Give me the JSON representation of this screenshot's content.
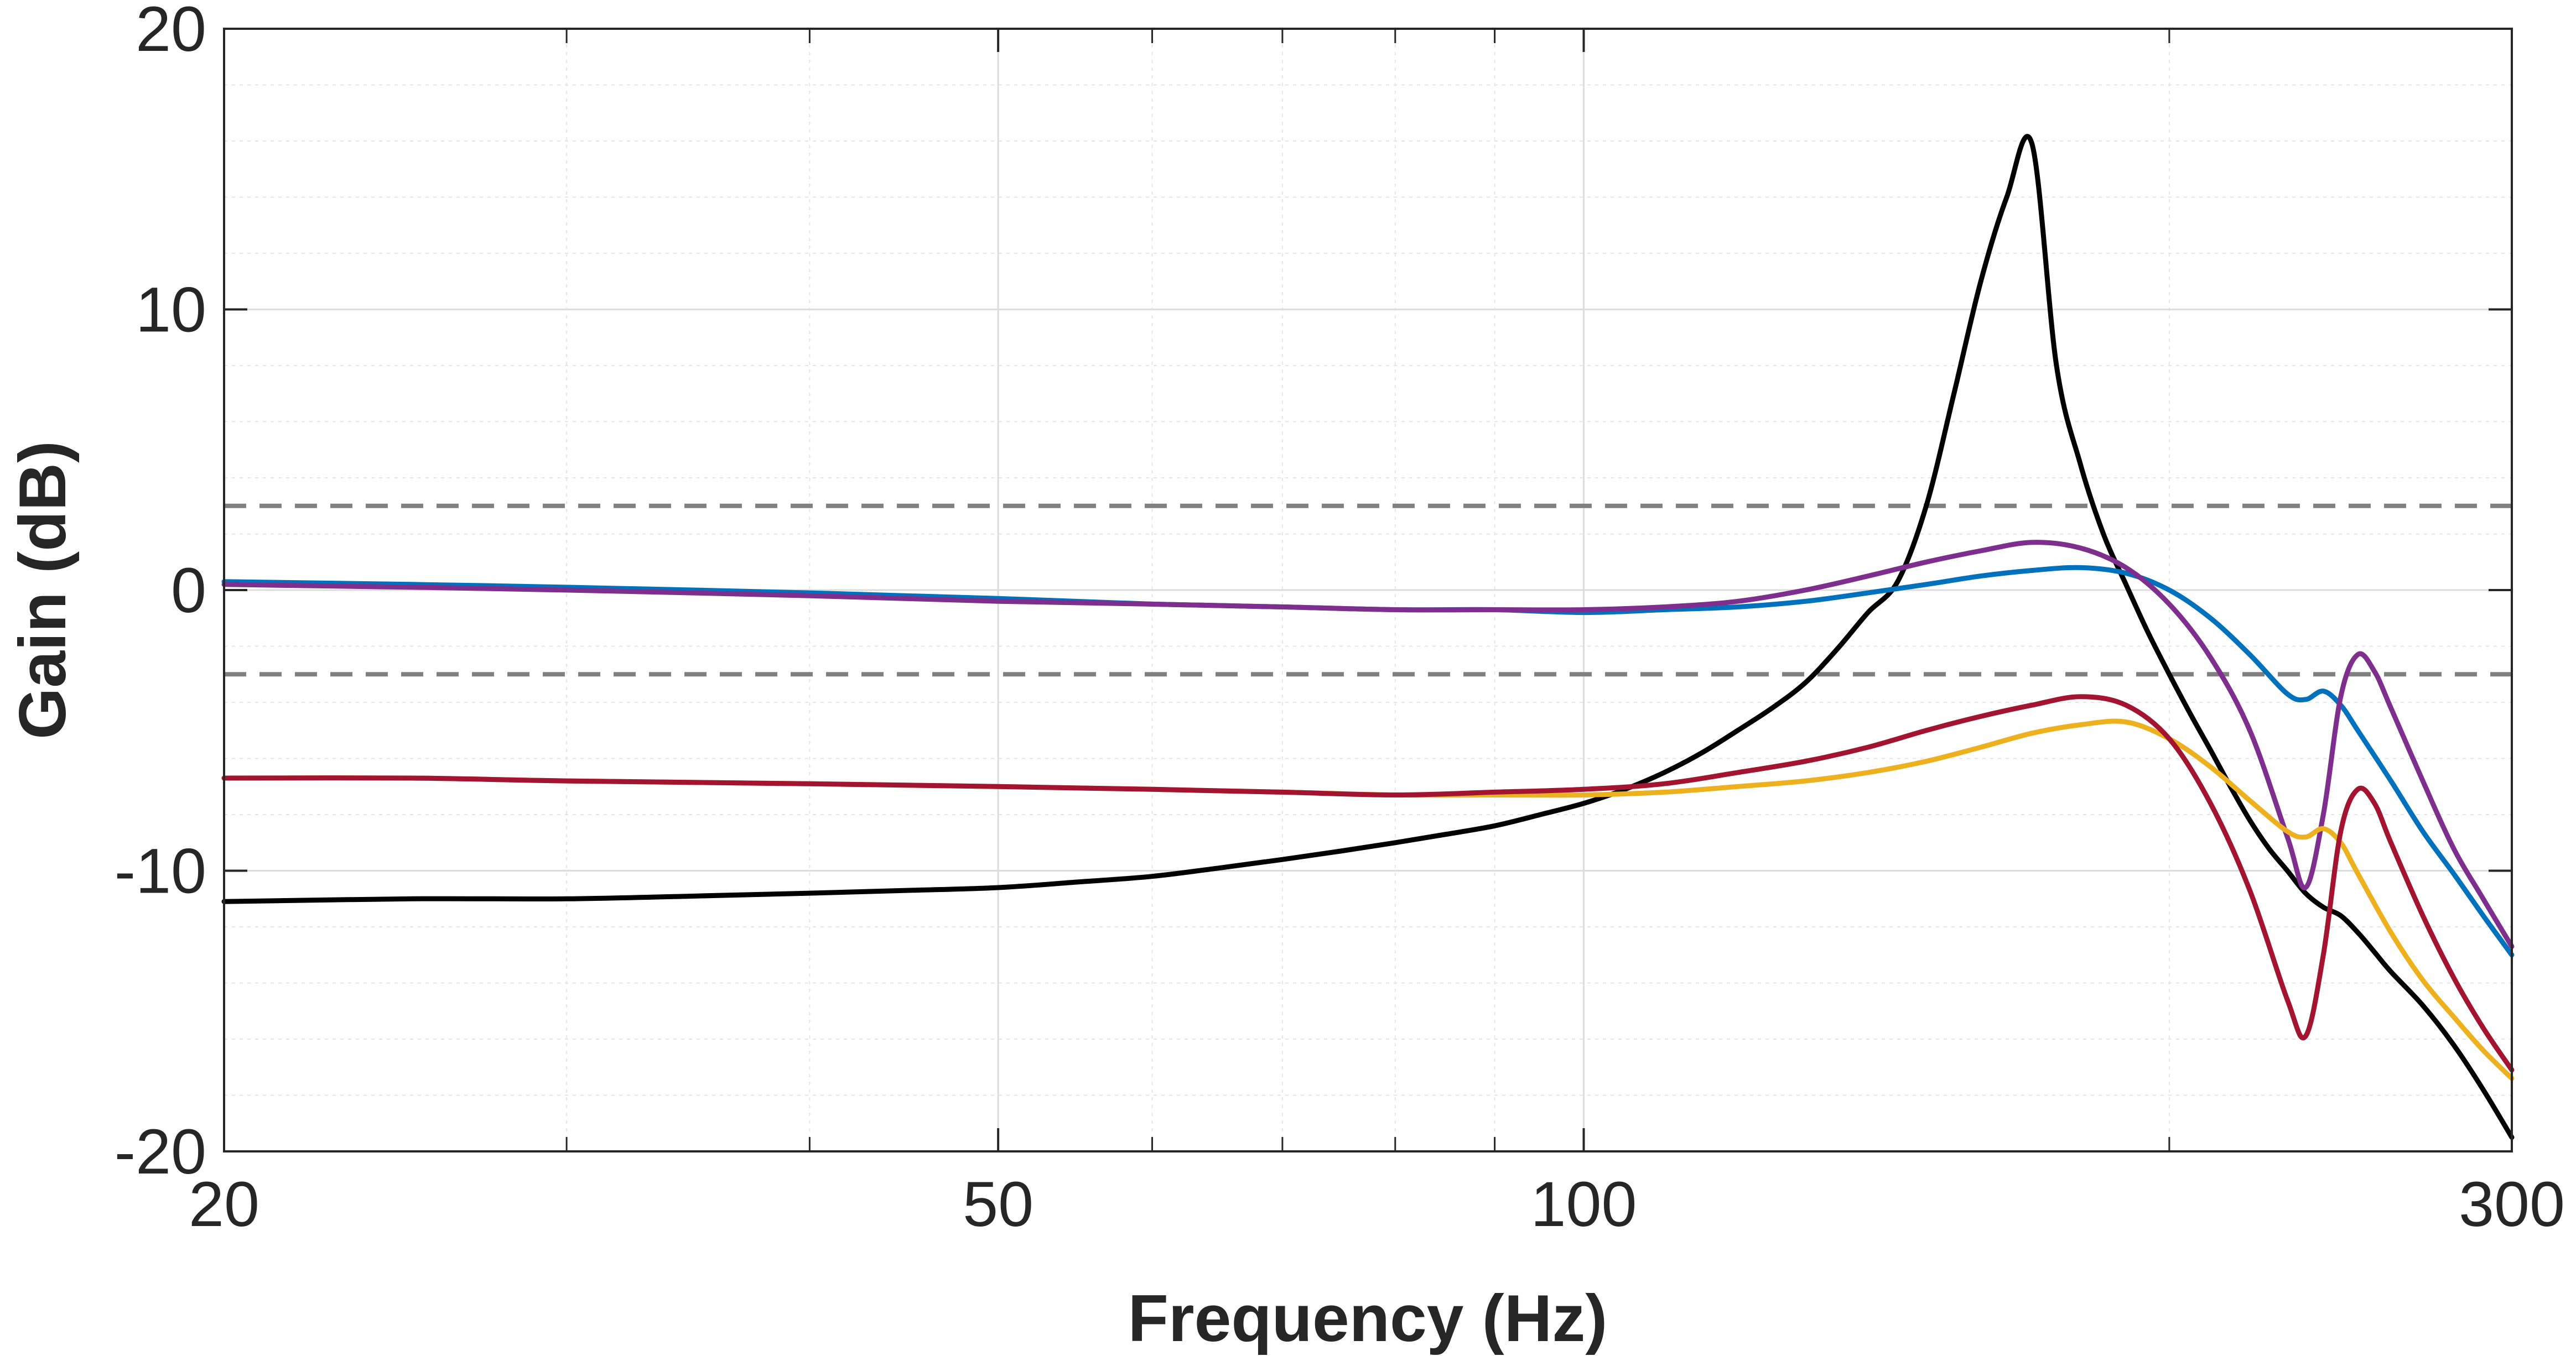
{
  "chart_data": {
    "type": "line",
    "title": "",
    "xlabel": "Frequency (Hz)",
    "ylabel": "Gain (dB)",
    "xscale": "log",
    "xlim": [
      20,
      300
    ],
    "ylim": [
      -20,
      20
    ],
    "xticks": [
      20,
      50,
      100,
      300
    ],
    "xtick_labels": [
      "20",
      "50",
      "100",
      "300"
    ],
    "yticks": [
      -20,
      -10,
      0,
      10,
      20
    ],
    "ytick_labels": [
      "-20",
      "-10",
      "0",
      "10",
      "20"
    ],
    "grid": true,
    "legend": "none",
    "reference_lines": [
      {
        "y": 3,
        "style": "dashed",
        "color": "#808080"
      },
      {
        "y": -3,
        "style": "dashed",
        "color": "#808080"
      }
    ],
    "series": [
      {
        "color": "#000000",
        "x": [
          20,
          25,
          30,
          35,
          40,
          45,
          50,
          55,
          60,
          65,
          70,
          75,
          80,
          85,
          90,
          95,
          100,
          105,
          110,
          115,
          120,
          125,
          130,
          135,
          140,
          145,
          150,
          155,
          160,
          165,
          170,
          175,
          180,
          185,
          190,
          195,
          200,
          205,
          210,
          215,
          220,
          225,
          230,
          235,
          240,
          245,
          250,
          255,
          260,
          270,
          280,
          290,
          300
        ],
        "y": [
          -11.1,
          -11.0,
          -11.0,
          -10.9,
          -10.8,
          -10.7,
          -10.6,
          -10.4,
          -10.2,
          -9.9,
          -9.6,
          -9.3,
          -9.0,
          -8.7,
          -8.4,
          -8.0,
          -7.6,
          -7.1,
          -6.5,
          -5.8,
          -5.0,
          -4.2,
          -3.3,
          -2.1,
          -0.8,
          0.3,
          3.0,
          7.0,
          11.0,
          14.0,
          15.9,
          8.0,
          4.5,
          2.0,
          0.2,
          -1.5,
          -3.0,
          -4.4,
          -5.7,
          -7.0,
          -8.2,
          -9.2,
          -10.0,
          -10.8,
          -11.3,
          -11.6,
          -12.2,
          -12.9,
          -13.6,
          -14.8,
          -16.2,
          -17.8,
          -19.5
        ]
      },
      {
        "color": "#0072BD",
        "x": [
          20,
          25,
          30,
          40,
          50,
          60,
          70,
          80,
          90,
          100,
          110,
          120,
          130,
          140,
          150,
          160,
          170,
          180,
          190,
          200,
          210,
          220,
          230,
          235,
          240,
          245,
          250,
          260,
          270,
          280,
          290,
          300
        ],
        "y": [
          0.3,
          0.2,
          0.1,
          -0.1,
          -0.3,
          -0.5,
          -0.6,
          -0.7,
          -0.7,
          -0.8,
          -0.7,
          -0.6,
          -0.4,
          -0.1,
          0.2,
          0.5,
          0.7,
          0.8,
          0.6,
          0.0,
          -1.0,
          -2.3,
          -3.7,
          -3.9,
          -3.6,
          -4.1,
          -5.0,
          -6.8,
          -8.6,
          -10.1,
          -11.6,
          -13.0
        ]
      },
      {
        "color": "#7E2F8E",
        "x": [
          20,
          25,
          30,
          40,
          50,
          60,
          70,
          80,
          90,
          100,
          110,
          120,
          130,
          140,
          150,
          160,
          170,
          180,
          190,
          200,
          210,
          220,
          230,
          235,
          240,
          245,
          250,
          255,
          260,
          270,
          280,
          290,
          300
        ],
        "y": [
          0.2,
          0.1,
          0.0,
          -0.2,
          -0.4,
          -0.5,
          -0.6,
          -0.7,
          -0.7,
          -0.7,
          -0.6,
          -0.4,
          0.0,
          0.5,
          1.0,
          1.4,
          1.7,
          1.5,
          0.8,
          -0.5,
          -2.4,
          -5.0,
          -8.8,
          -10.6,
          -8.0,
          -3.8,
          -2.3,
          -2.9,
          -4.2,
          -6.8,
          -9.2,
          -11.0,
          -12.7
        ]
      },
      {
        "color": "#EDB120",
        "x": [
          20,
          25,
          30,
          40,
          50,
          60,
          70,
          80,
          90,
          100,
          110,
          120,
          130,
          140,
          150,
          160,
          170,
          180,
          190,
          200,
          210,
          220,
          230,
          235,
          240,
          245,
          250,
          260,
          270,
          280,
          290,
          300
        ],
        "y": [
          -6.7,
          -6.7,
          -6.8,
          -6.9,
          -7.0,
          -7.1,
          -7.2,
          -7.3,
          -7.3,
          -7.3,
          -7.2,
          -7.0,
          -6.8,
          -6.5,
          -6.1,
          -5.6,
          -5.1,
          -4.8,
          -4.7,
          -5.3,
          -6.3,
          -7.5,
          -8.6,
          -8.8,
          -8.5,
          -9.0,
          -10.1,
          -12.2,
          -13.9,
          -15.2,
          -16.4,
          -17.4
        ]
      },
      {
        "color": "#A2142F",
        "x": [
          20,
          25,
          30,
          40,
          50,
          60,
          70,
          80,
          90,
          100,
          110,
          120,
          130,
          140,
          150,
          160,
          170,
          180,
          190,
          200,
          210,
          220,
          230,
          235,
          240,
          245,
          250,
          255,
          260,
          270,
          280,
          290,
          300
        ],
        "y": [
          -6.7,
          -6.7,
          -6.8,
          -6.9,
          -7.0,
          -7.1,
          -7.2,
          -7.3,
          -7.2,
          -7.1,
          -6.9,
          -6.5,
          -6.1,
          -5.6,
          -5.0,
          -4.5,
          -4.1,
          -3.8,
          -4.1,
          -5.3,
          -7.6,
          -10.7,
          -14.6,
          -15.9,
          -13.0,
          -8.6,
          -7.1,
          -7.6,
          -9.0,
          -11.6,
          -13.8,
          -15.6,
          -17.1
        ]
      }
    ]
  }
}
